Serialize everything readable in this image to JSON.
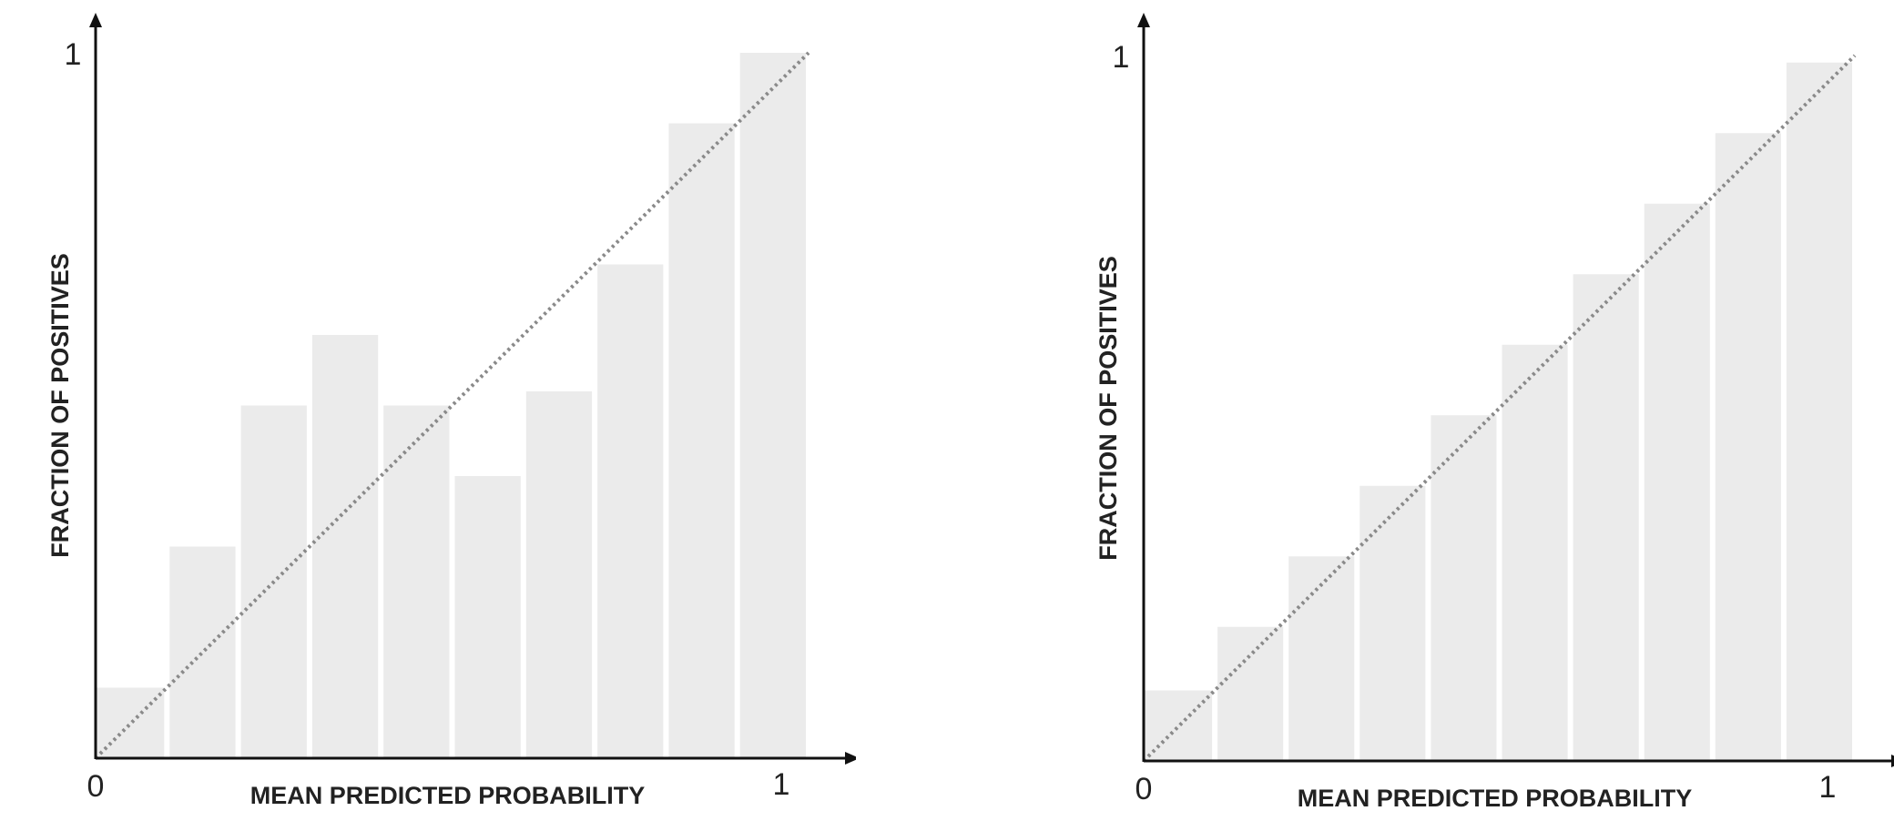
{
  "chart_data": [
    {
      "type": "bar",
      "xlabel": "MEAN PREDICTED PROBABILITY",
      "ylabel": "FRACTION OF POSITIVES",
      "xlim": [
        0,
        1
      ],
      "ylim": [
        0,
        1
      ],
      "x_ticks": [
        "0",
        "1"
      ],
      "y_ticks": [
        "1"
      ],
      "categories": [
        "0.0-0.1",
        "0.1-0.2",
        "0.2-0.3",
        "0.3-0.4",
        "0.4-0.5",
        "0.5-0.6",
        "0.6-0.7",
        "0.7-0.8",
        "0.8-0.9",
        "0.9-1.0"
      ],
      "values": [
        0.1,
        0.3,
        0.5,
        0.6,
        0.5,
        0.4,
        0.52,
        0.7,
        0.9,
        1.0
      ],
      "reference_line": "diagonal y = x, dotted",
      "bar_color": "#ebebeb",
      "reference_color": "#8a8a8a",
      "grid": false,
      "legend": "none"
    },
    {
      "type": "bar",
      "xlabel": "MEAN PREDICTED PROBABILITY",
      "ylabel": "FRACTION OF POSITIVES",
      "xlim": [
        0,
        1
      ],
      "ylim": [
        0,
        1
      ],
      "x_ticks": [
        "0",
        "1"
      ],
      "y_ticks": [
        "1"
      ],
      "categories": [
        "0.0-0.1",
        "0.1-0.2",
        "0.2-0.3",
        "0.3-0.4",
        "0.4-0.5",
        "0.5-0.6",
        "0.6-0.7",
        "0.7-0.8",
        "0.8-0.9",
        "0.9-1.0"
      ],
      "values": [
        0.1,
        0.19,
        0.29,
        0.39,
        0.49,
        0.59,
        0.69,
        0.79,
        0.89,
        0.99
      ],
      "reference_line": "diagonal y = x, dotted",
      "bar_color": "#ebebeb",
      "reference_color": "#8a8a8a",
      "grid": false,
      "legend": "none"
    }
  ]
}
